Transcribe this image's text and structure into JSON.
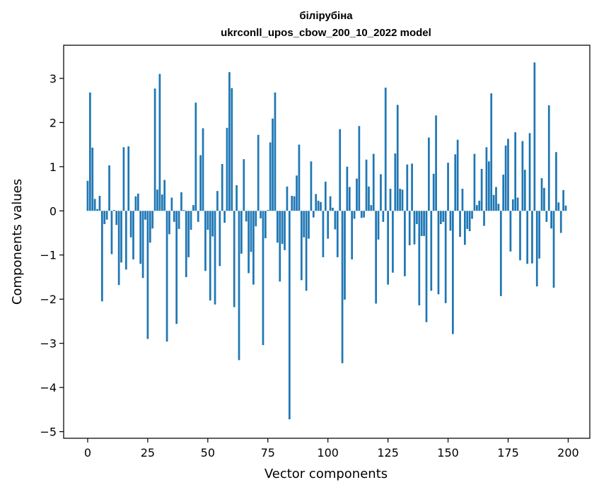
{
  "chart_data": {
    "type": "bar",
    "title": "білірубіна",
    "subtitle": "ukrconll_upos_cbow_200_10_2022 model",
    "xlabel": "Vector components",
    "ylabel": "Components values",
    "xlim": [
      -10,
      209
    ],
    "ylim": [
      -5.15,
      3.75
    ],
    "xticks": [
      0,
      25,
      50,
      75,
      100,
      125,
      150,
      175,
      200
    ],
    "yticks": [
      -5,
      -4,
      -3,
      -2,
      -1,
      0,
      1,
      2,
      3
    ],
    "ytick_labels": [
      "−5",
      "−4",
      "−3",
      "−2",
      "−1",
      "0",
      "1",
      "2",
      "3"
    ],
    "bar_color": "#1f77b4",
    "x": [
      0,
      1,
      2,
      3,
      4,
      5,
      6,
      7,
      8,
      9,
      10,
      11,
      12,
      13,
      14,
      15,
      16,
      17,
      18,
      19,
      20,
      21,
      22,
      23,
      24,
      25,
      26,
      27,
      28,
      29,
      30,
      31,
      32,
      33,
      34,
      35,
      36,
      37,
      38,
      39,
      40,
      41,
      42,
      43,
      44,
      45,
      46,
      47,
      48,
      49,
      50,
      51,
      52,
      53,
      54,
      55,
      56,
      57,
      58,
      59,
      60,
      61,
      62,
      63,
      64,
      65,
      66,
      67,
      68,
      69,
      70,
      71,
      72,
      73,
      74,
      75,
      76,
      77,
      78,
      79,
      80,
      81,
      82,
      83,
      84,
      85,
      86,
      87,
      88,
      89,
      90,
      91,
      92,
      93,
      94,
      95,
      96,
      97,
      98,
      99,
      100,
      101,
      102,
      103,
      104,
      105,
      106,
      107,
      108,
      109,
      110,
      111,
      112,
      113,
      114,
      115,
      116,
      117,
      118,
      119,
      120,
      121,
      122,
      123,
      124,
      125,
      126,
      127,
      128,
      129,
      130,
      131,
      132,
      133,
      134,
      135,
      136,
      137,
      138,
      139,
      140,
      141,
      142,
      143,
      144,
      145,
      146,
      147,
      148,
      149,
      150,
      151,
      152,
      153,
      154,
      155,
      156,
      157,
      158,
      159,
      160,
      161,
      162,
      163,
      164,
      165,
      166,
      167,
      168,
      169,
      170,
      171,
      172,
      173,
      174,
      175,
      176,
      177,
      178,
      179,
      180,
      181,
      182,
      183,
      184,
      185,
      186,
      187,
      188,
      189,
      190,
      191,
      192,
      193,
      194,
      195,
      196,
      197,
      198,
      199
    ],
    "values": [
      0.68,
      2.68,
      1.43,
      0.27,
      0.04,
      0.34,
      -2.05,
      -0.3,
      -0.2,
      1.03,
      -0.98,
      0.02,
      -0.32,
      -1.68,
      -1.17,
      1.44,
      -1.33,
      1.46,
      -0.6,
      -1.1,
      0.33,
      0.39,
      -1.2,
      -1.52,
      -0.2,
      -2.9,
      -0.72,
      -0.4,
      2.77,
      0.48,
      3.1,
      0.37,
      0.7,
      -2.96,
      -0.53,
      0.3,
      -0.25,
      -2.56,
      -0.41,
      0.42,
      0.02,
      -1.5,
      -1.05,
      -0.43,
      0.13,
      2.45,
      -0.25,
      1.26,
      1.87,
      -1.36,
      -0.43,
      -2.03,
      -0.58,
      -2.12,
      0.45,
      -1.25,
      1.06,
      -0.27,
      1.88,
      3.14,
      2.78,
      -2.18,
      0.58,
      -3.38,
      -0.97,
      1.17,
      -0.24,
      -1.41,
      -0.93,
      -1.67,
      -0.35,
      1.72,
      -0.17,
      -3.04,
      -0.62,
      0.02,
      1.55,
      2.09,
      2.68,
      -0.72,
      -1.6,
      -0.75,
      -0.89,
      0.55,
      -4.72,
      0.34,
      0.33,
      0.8,
      1.5,
      -1.57,
      -0.6,
      -1.81,
      -0.63,
      1.12,
      -0.15,
      0.38,
      0.23,
      0.2,
      -1.05,
      0.66,
      -0.63,
      0.33,
      0.07,
      -0.42,
      -1.05,
      1.85,
      -3.45,
      -2.01,
      1.0,
      0.54,
      -1.1,
      -0.18,
      0.73,
      1.92,
      -0.16,
      -0.15,
      1.16,
      0.55,
      0.13,
      1.29,
      -2.1,
      -0.65,
      0.83,
      -0.25,
      2.79,
      -1.67,
      0.5,
      -1.4,
      1.3,
      2.4,
      0.5,
      0.48,
      -1.48,
      1.05,
      -0.78,
      1.07,
      -0.76,
      -0.3,
      -2.14,
      -0.57,
      -0.57,
      -2.52,
      1.66,
      -1.81,
      0.84,
      2.16,
      -1.89,
      -0.3,
      -0.25,
      -2.09,
      1.09,
      -0.45,
      -2.79,
      1.28,
      1.61,
      -0.59,
      0.5,
      -0.77,
      -0.41,
      -0.46,
      -0.18,
      1.29,
      0.13,
      0.23,
      0.95,
      -0.34,
      1.44,
      1.12,
      2.66,
      0.36,
      0.54,
      0.16,
      -1.93,
      0.82,
      1.48,
      1.63,
      -0.92,
      0.26,
      1.78,
      0.3,
      -1.12,
      1.58,
      0.93,
      -1.2,
      1.76,
      -1.19,
      3.36,
      -1.71,
      -1.08,
      0.74,
      0.52,
      -0.25,
      2.39,
      -0.4,
      -1.74,
      1.33,
      0.19,
      -0.5,
      0.47,
      0.12
    ]
  }
}
